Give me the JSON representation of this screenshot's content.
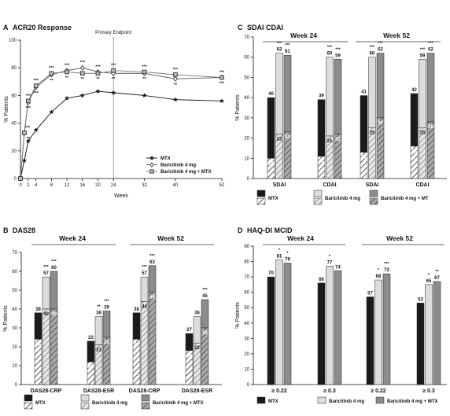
{
  "chart_data": [
    {
      "panel": "A",
      "type": "line",
      "title": "ACR20 Response",
      "xlabel": "Week",
      "ylabel": "% Patients",
      "annotation": "Primary Endpoint",
      "xlim": [
        0,
        52
      ],
      "ylim": [
        0,
        100
      ],
      "xticks": [
        0,
        2,
        4,
        8,
        12,
        16,
        20,
        24,
        32,
        40,
        52
      ],
      "yticks": [
        0,
        20,
        40,
        60,
        80,
        100
      ],
      "legend_position": "bottom-right",
      "x": [
        0,
        1,
        2,
        4,
        8,
        12,
        16,
        20,
        24,
        32,
        40,
        52
      ],
      "series": [
        {
          "name": "MTX",
          "values": [
            0,
            13,
            27,
            35,
            48,
            58,
            60,
            63,
            62,
            60,
            57,
            56
          ],
          "color": "#111111",
          "marker": "star"
        },
        {
          "name": "Baricitinib 4 mg",
          "values": [
            0,
            33,
            55,
            66,
            75,
            78,
            80,
            77,
            76,
            76,
            72,
            73
          ],
          "color": "#555555",
          "marker": "diamond",
          "asterisks": [
            "",
            "***",
            "***",
            "***",
            "***",
            "***",
            "***",
            "***",
            "***",
            "***",
            "***",
            "***"
          ]
        },
        {
          "name": "Baricitinib 4 mg + MTX",
          "values": [
            0,
            33,
            56,
            67,
            76,
            77,
            76,
            76,
            78,
            77,
            75,
            73
          ],
          "color": "#777777",
          "marker": "square",
          "asterisks": [
            "",
            "**",
            "***",
            "***",
            "**",
            "**",
            "**",
            "**",
            "**",
            "**",
            "**",
            "***"
          ]
        }
      ]
    },
    {
      "panel": "B",
      "type": "bar",
      "title": "DAS28",
      "ylabel": "% Patients",
      "ylim": [
        0,
        70
      ],
      "yticks": [
        0,
        10,
        20,
        30,
        40,
        50,
        60,
        70
      ],
      "groups": [
        {
          "title": "Week 24",
          "categories": [
            {
              "label": "DAS28-CRP",
              "bars": [
                {
                  "total": 38,
                  "inner": 24,
                  "asterisks": ""
                },
                {
                  "total": 57,
                  "inner": 40,
                  "asterisks": "***"
                },
                {
                  "total": 60,
                  "inner": 40,
                  "asterisks": "***"
                }
              ]
            },
            {
              "label": "DAS28-ESR",
              "bars": [
                {
                  "total": 23,
                  "inner": 12,
                  "asterisks": ""
                },
                {
                  "total": 36,
                  "inner": 21,
                  "asterisks": "**"
                },
                {
                  "total": 39,
                  "inner": 25,
                  "asterisks": "***"
                }
              ]
            }
          ]
        },
        {
          "title": "Week 52",
          "categories": [
            {
              "label": "DAS28-CRP",
              "bars": [
                {
                  "total": 38,
                  "inner": 24,
                  "asterisks": ""
                },
                {
                  "total": 57,
                  "inner": 44,
                  "asterisks": "***"
                },
                {
                  "total": 63,
                  "inner": 49,
                  "asterisks": "***"
                }
              ]
            },
            {
              "label": "DAS28-ESR",
              "bars": [
                {
                  "total": 27,
                  "inner": 18,
                  "asterisks": ""
                },
                {
                  "total": 36,
                  "inner": 22,
                  "asterisks": ""
                },
                {
                  "total": 45,
                  "inner": 30,
                  "asterisks": "***"
                }
              ]
            }
          ]
        }
      ],
      "legend": [
        "MTX",
        "Baricitinib 4 mg",
        "Baricitinib 4 mg + MTX"
      ]
    },
    {
      "panel": "C",
      "type": "bar",
      "title": "SDAI CDAI",
      "ylabel": "% Patients",
      "ylim": [
        0,
        70
      ],
      "yticks": [
        0,
        10,
        20,
        30,
        40,
        50,
        60,
        70
      ],
      "groups": [
        {
          "title": "Week 24",
          "categories": [
            {
              "label": "SDAI",
              "bars": [
                {
                  "total": 40,
                  "inner": 10,
                  "asterisks": ""
                },
                {
                  "total": 62,
                  "inner": 22,
                  "asterisks": "***"
                },
                {
                  "total": 61,
                  "inner": 23,
                  "asterisks": "***"
                }
              ]
            },
            {
              "label": "CDAI",
              "bars": [
                {
                  "total": 39,
                  "inner": 11,
                  "asterisks": ""
                },
                {
                  "total": 60,
                  "inner": 21,
                  "asterisks": "***"
                },
                {
                  "total": 59,
                  "inner": 22,
                  "asterisks": "***"
                }
              ]
            }
          ]
        },
        {
          "title": "Week 52",
          "categories": [
            {
              "label": "SDAI",
              "bars": [
                {
                  "total": 41,
                  "inner": 13,
                  "asterisks": ""
                },
                {
                  "total": 60,
                  "inner": 25,
                  "asterisks": "***"
                },
                {
                  "total": 62,
                  "inner": 30,
                  "asterisks": "***"
                }
              ]
            },
            {
              "label": "CDAI",
              "bars": [
                {
                  "total": 42,
                  "inner": 16,
                  "asterisks": ""
                },
                {
                  "total": 59,
                  "inner": 25,
                  "asterisks": "***"
                },
                {
                  "total": 62,
                  "inner": 28,
                  "asterisks": "***"
                }
              ]
            }
          ]
        }
      ],
      "legend": [
        "MTX",
        "Baricitinib 4 mg",
        "Baricitinib 4 mg + MT"
      ]
    },
    {
      "panel": "D",
      "type": "bar",
      "title": "HAQ-DI MCID",
      "ylabel": "% Patients",
      "ylim": [
        0,
        90
      ],
      "yticks": [
        0,
        10,
        20,
        30,
        40,
        50,
        60,
        70,
        80,
        90
      ],
      "groups": [
        {
          "title": "Week 24",
          "categories": [
            {
              "label": "≥ 0.22",
              "bars": [
                {
                  "total": 70,
                  "asterisks": ""
                },
                {
                  "total": 81,
                  "asterisks": "*"
                },
                {
                  "total": 79,
                  "asterisks": "*"
                }
              ]
            },
            {
              "label": "≥ 0.3",
              "bars": [
                {
                  "total": 66,
                  "asterisks": ""
                },
                {
                  "total": 77,
                  "asterisks": "*"
                },
                {
                  "total": 74,
                  "asterisks": ""
                }
              ]
            }
          ]
        },
        {
          "title": "Week 52",
          "categories": [
            {
              "label": "≥ 0.22",
              "bars": [
                {
                  "total": 57,
                  "asterisks": ""
                },
                {
                  "total": 68,
                  "asterisks": "*"
                },
                {
                  "total": 72,
                  "asterisks": "***"
                }
              ]
            },
            {
              "label": "≥ 0.3",
              "bars": [
                {
                  "total": 53,
                  "asterisks": ""
                },
                {
                  "total": 65,
                  "asterisks": "*"
                },
                {
                  "total": 67,
                  "asterisks": "**"
                }
              ]
            }
          ]
        }
      ],
      "legend": [
        "MTX",
        "Baricitinib 4 mg",
        "Baricitinib 4 mg + MTX"
      ]
    }
  ],
  "colors": {
    "mtx": "#1a1a1a",
    "bari": "#dcdcdc",
    "bari_mtx": "#8c8c8c",
    "axis": "#111111"
  }
}
